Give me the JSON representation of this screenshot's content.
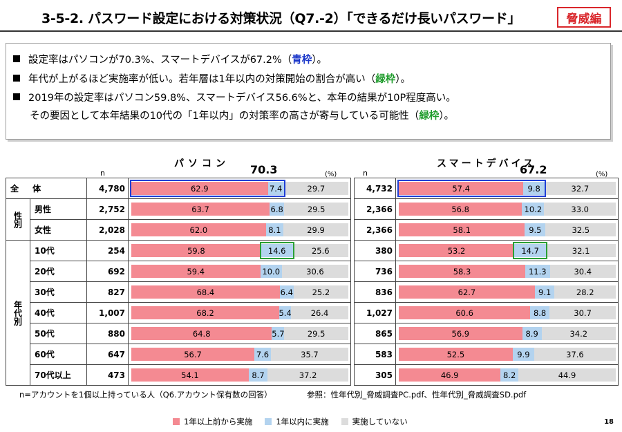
{
  "header": {
    "title": "3-5-2. パスワード設定における対策状況（Q7.-2）「できるだけ長いパスワード」",
    "badge": "脅威編"
  },
  "summary": [
    {
      "text": "設定率はパソコンが70.3%、スマートデバイスが67.2%（",
      "mark": "青枠",
      "tail": "）。"
    },
    {
      "text": "年代が上がるほど実施率が低い。若年層は1年以内の対策開始の割合が高い（",
      "mark": "緑枠",
      "tail": "）。"
    },
    {
      "text": "2019年の設定率はパソコン59.8%、スマートデバイス56.6%と、本年の結果が10P程度高い。",
      "mark": "",
      "tail": ""
    },
    {
      "text": "その要因として本年結果の10代の「1年以内」の対策率の高さが寄与している可能性（",
      "mark": "緑枠",
      "tail": "）。"
    }
  ],
  "panels": {
    "pc": {
      "title": "パソコン",
      "total": "70.3",
      "unit": "(%)",
      "n_label": "n"
    },
    "sd": {
      "title": "スマートデバイス",
      "total": "67.2",
      "unit": "(%)",
      "n_label": "n"
    }
  },
  "groups": {
    "sex": "性別",
    "age": "年代別"
  },
  "chart_data": {
    "type": "bar",
    "stacked": true,
    "orientation": "horizontal",
    "series_names": [
      "1年以上前から実施",
      "1年以内に実施",
      "実施していない"
    ],
    "colors": {
      "over_1y": "#f48a92",
      "within_1y": "#b3d3ef",
      "none": "#dcdcdc"
    },
    "rows": [
      {
        "label": "全 体",
        "pc_n": "4,780",
        "pc": [
          62.9,
          7.4,
          29.7
        ],
        "sd_n": "4,732",
        "sd": [
          57.4,
          9.8,
          32.7
        ]
      },
      {
        "label": "男性",
        "pc_n": "2,752",
        "pc": [
          63.7,
          6.8,
          29.5
        ],
        "sd_n": "2,366",
        "sd": [
          56.8,
          10.2,
          33.0
        ]
      },
      {
        "label": "女性",
        "pc_n": "2,028",
        "pc": [
          62.0,
          8.1,
          29.9
        ],
        "sd_n": "2,366",
        "sd": [
          58.1,
          9.5,
          32.5
        ]
      },
      {
        "label": "10代",
        "pc_n": "254",
        "pc": [
          59.8,
          14.6,
          25.6
        ],
        "sd_n": "380",
        "sd": [
          53.2,
          14.7,
          32.1
        ]
      },
      {
        "label": "20代",
        "pc_n": "692",
        "pc": [
          59.4,
          10.0,
          30.6
        ],
        "sd_n": "736",
        "sd": [
          58.3,
          11.3,
          30.4
        ]
      },
      {
        "label": "30代",
        "pc_n": "827",
        "pc": [
          68.4,
          6.4,
          25.2
        ],
        "sd_n": "836",
        "sd": [
          62.7,
          9.1,
          28.2
        ]
      },
      {
        "label": "40代",
        "pc_n": "1,007",
        "pc": [
          68.2,
          5.4,
          26.4
        ],
        "sd_n": "1,027",
        "sd": [
          60.6,
          8.8,
          30.7
        ]
      },
      {
        "label": "50代",
        "pc_n": "880",
        "pc": [
          64.8,
          5.7,
          29.5
        ],
        "sd_n": "865",
        "sd": [
          56.9,
          8.9,
          34.2
        ]
      },
      {
        "label": "60代",
        "pc_n": "647",
        "pc": [
          56.7,
          7.6,
          35.7
        ],
        "sd_n": "583",
        "sd": [
          52.5,
          9.9,
          37.6
        ]
      },
      {
        "label": "70代以上",
        "pc_n": "473",
        "pc": [
          54.1,
          8.7,
          37.2
        ],
        "sd_n": "305",
        "sd": [
          46.9,
          8.2,
          44.9
        ]
      }
    ]
  },
  "footer": {
    "note": "n=アカウントを1個以上持っている人（Q6.アカウント保有数の回答）",
    "ref": "参照：性年代別_脅威調査PC.pdf、性年代別_脅威調査SD.pdf",
    "page": "18"
  }
}
